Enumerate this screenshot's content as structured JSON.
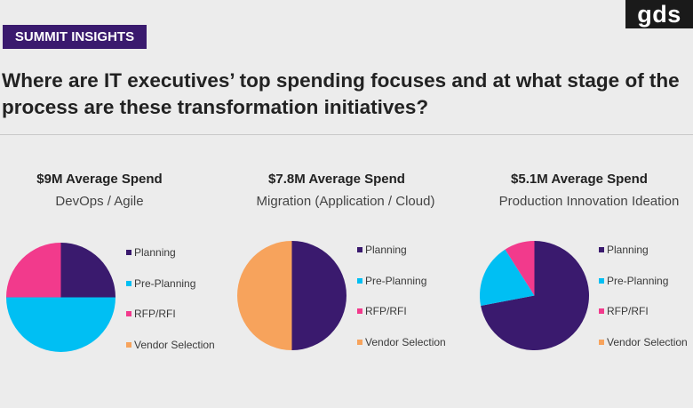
{
  "badge": "SUMMIT INSIGHTS",
  "logo": "gds",
  "headline": "Where are IT executives’ top spending focuses and at what stage of the process are these transformation initiatives?",
  "legend_items": [
    {
      "label": "Planning",
      "color": "#3a1a6e"
    },
    {
      "label": "Pre-Planning",
      "color": "#00bff3"
    },
    {
      "label": "RFP/RFI",
      "color": "#f23a8c"
    },
    {
      "label": "Vendor Selection",
      "color": "#f7a35c"
    }
  ],
  "chart_data": [
    {
      "type": "pie",
      "title": "$9M Average Spend",
      "subtitle": "DevOps / Agile",
      "labels": [
        "Planning",
        "Pre-Planning",
        "RFP/RFI",
        "Vendor Selection"
      ],
      "values": [
        25,
        50,
        25,
        0
      ],
      "colors": [
        "#3a1a6e",
        "#00bff3",
        "#f23a8c",
        "#f7a35c"
      ],
      "legend_position": "right"
    },
    {
      "type": "pie",
      "title": "$7.8M Average Spend",
      "subtitle": "Migration (Application / Cloud)",
      "labels": [
        "Planning",
        "Pre-Planning",
        "RFP/RFI",
        "Vendor Selection"
      ],
      "values": [
        50,
        0,
        0,
        50
      ],
      "colors": [
        "#3a1a6e",
        "#00bff3",
        "#f23a8c",
        "#f7a35c"
      ],
      "legend_position": "right"
    },
    {
      "type": "pie",
      "title": "$5.1M Average Spend",
      "subtitle": "Production Innovation Ideation",
      "labels": [
        "Planning",
        "Pre-Planning",
        "RFP/RFI",
        "Vendor Selection"
      ],
      "values": [
        72,
        19,
        9,
        0
      ],
      "colors": [
        "#3a1a6e",
        "#00bff3",
        "#f23a8c",
        "#f7a35c"
      ],
      "legend_position": "right"
    }
  ]
}
